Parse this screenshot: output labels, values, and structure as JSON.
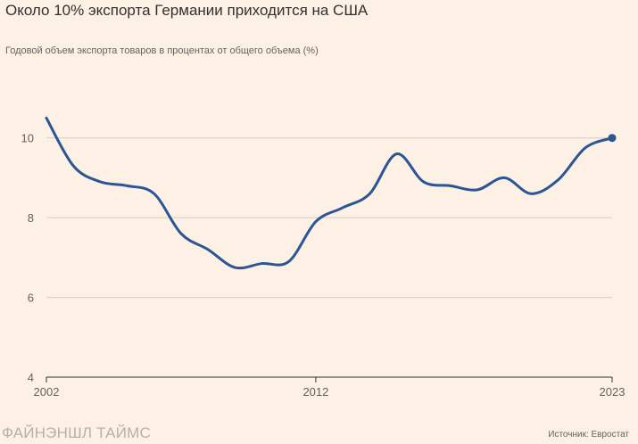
{
  "title": "Около 10% экспорта Германии приходится на США",
  "subtitle": "Годовой объем экспорта товаров в процентах от общего объема (%)",
  "brand": "ФАЙНЭНШЛ ТАЙМС",
  "source": "Источник: Евростат",
  "colors": {
    "background": "#fdf1e5",
    "line": "#2b5594",
    "grid": "#d9cec4",
    "axis": "#33302e",
    "text": "#66605c"
  },
  "chart_data": {
    "type": "line",
    "title": "Около 10% экспорта Германии приходится на США",
    "subtitle": "Годовой объем экспорта товаров в процентах от общего объема (%)",
    "xlabel": "",
    "ylabel": "",
    "x": [
      2002,
      2003,
      2004,
      2005,
      2006,
      2007,
      2008,
      2009,
      2010,
      2011,
      2012,
      2013,
      2014,
      2015,
      2016,
      2017,
      2018,
      2019,
      2020,
      2021,
      2022,
      2023
    ],
    "series": [
      {
        "values": [
          10.5,
          9.3,
          8.9,
          8.8,
          8.6,
          7.6,
          7.2,
          6.75,
          6.85,
          6.9,
          7.9,
          8.25,
          8.6,
          9.6,
          8.9,
          8.8,
          8.7,
          9.0,
          8.6,
          8.95,
          9.75,
          10.0
        ]
      }
    ],
    "xlim": [
      2002,
      2023
    ],
    "ylim": [
      4,
      11
    ],
    "yticks": [
      4,
      6,
      8,
      10
    ],
    "xticks": [
      2002,
      2012,
      2023
    ],
    "grid": true,
    "end_marker": true
  }
}
